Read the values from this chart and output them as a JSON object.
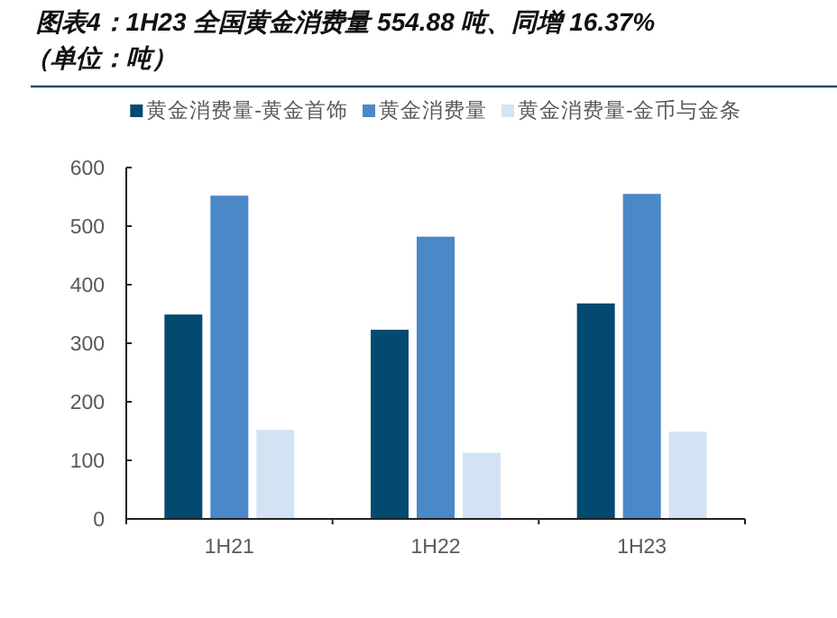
{
  "chart_data": {
    "type": "bar",
    "title": "图表4：1H23 全国黄金消费量 554.88 吨、同增 16.37%（单位：吨）",
    "categories": [
      "1H21",
      "1H22",
      "1H23"
    ],
    "series": [
      {
        "name": "黄金消费量-黄金首饰",
        "color": "#034a70",
        "values": [
          349,
          323,
          368
        ]
      },
      {
        "name": "黄金消费量",
        "color": "#4a88c8",
        "values": [
          552,
          482,
          555
        ]
      },
      {
        "name": "黄金消费量-金币与金条",
        "color": "#d3e3f3",
        "values": [
          152,
          113,
          149
        ]
      }
    ],
    "ylim": [
      0,
      600
    ],
    "yticks": [
      0,
      100,
      200,
      300,
      400,
      500,
      600
    ],
    "grid": false,
    "legend": "top"
  }
}
